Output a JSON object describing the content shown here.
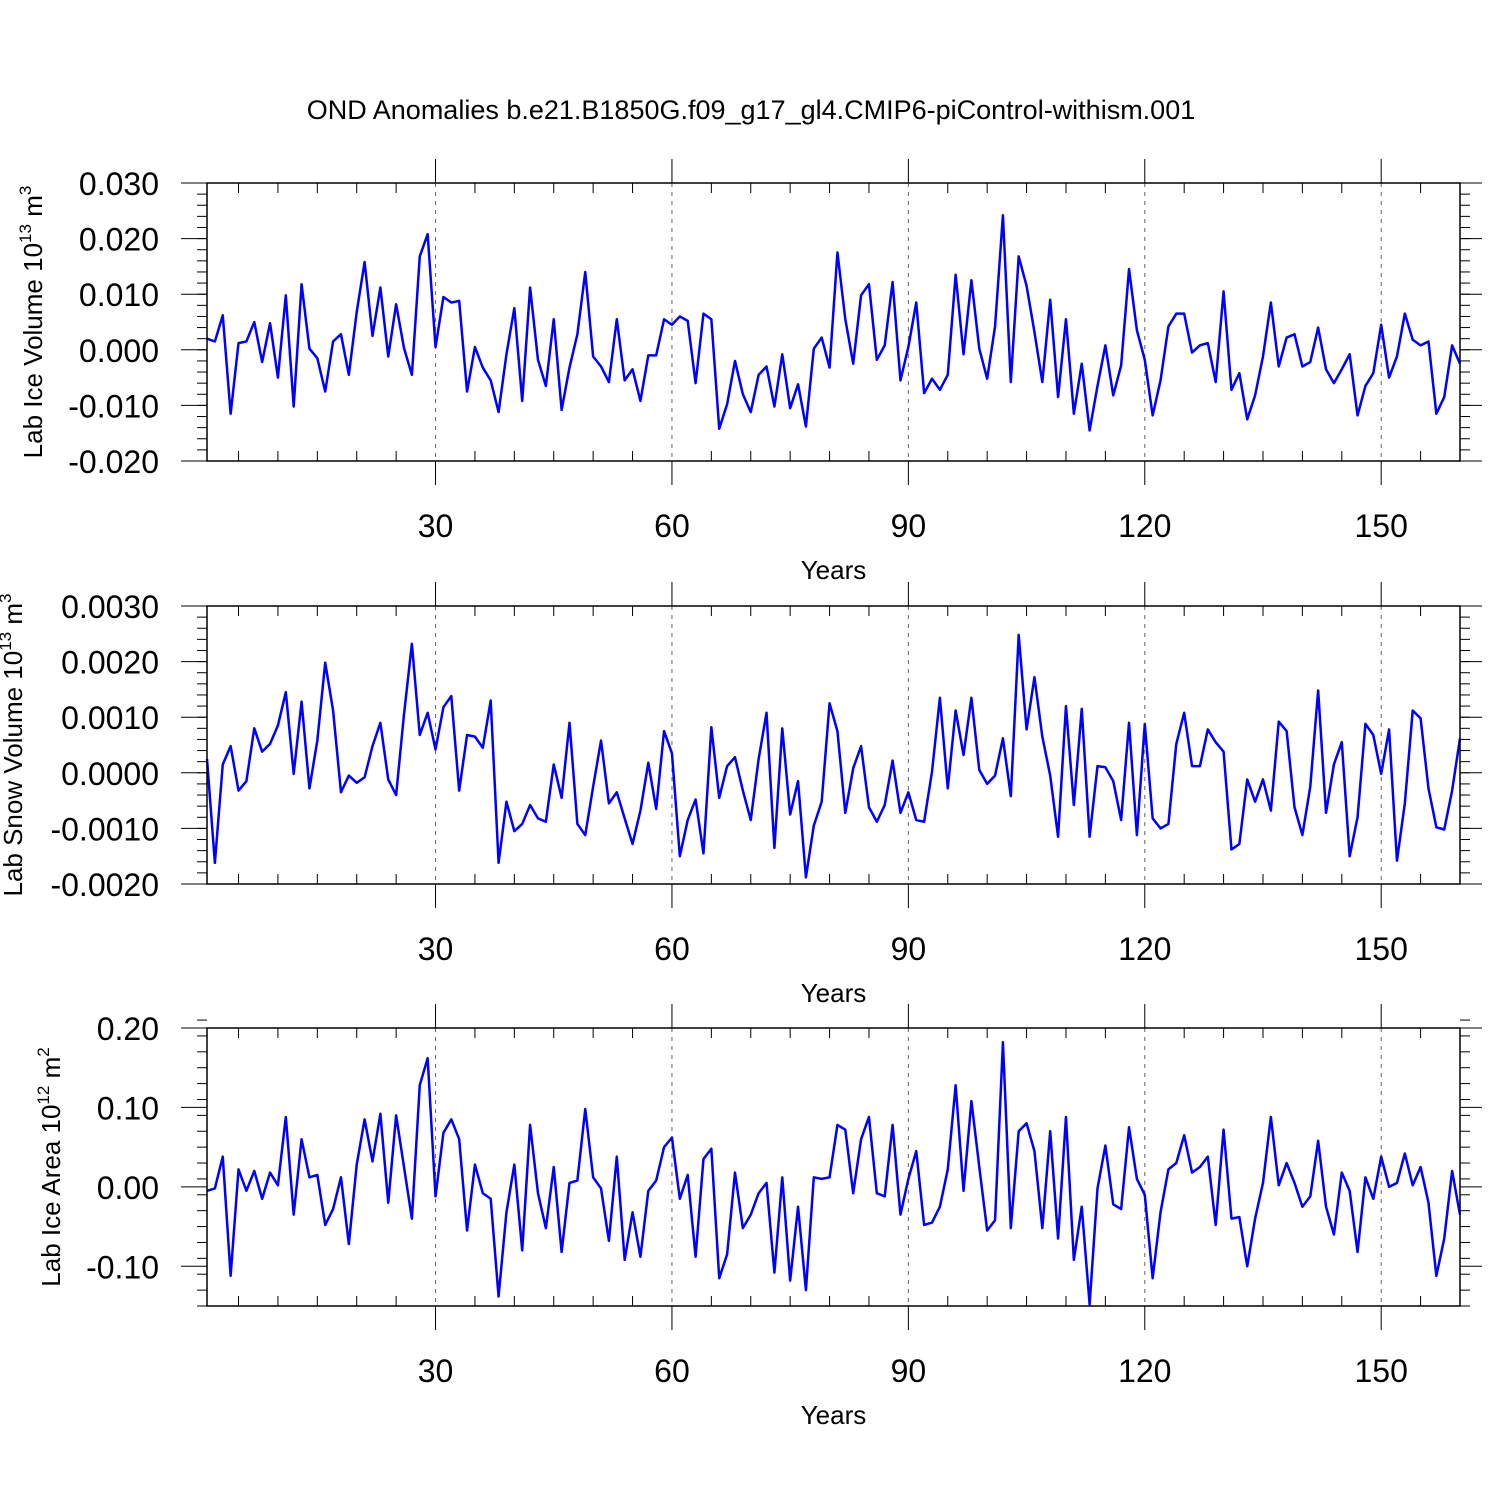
{
  "title": "OND Anomalies b.e21.B1850G.f09_g17_gl4.CMIP6-piControl-withism.001",
  "colors": {
    "line": "#0000ff",
    "frame": "#000000",
    "grid": "#666666",
    "background": "#ffffff"
  },
  "chart_data": [
    {
      "type": "line",
      "title": "",
      "xlabel": "Years",
      "ylabel": "Lab Ice Volume",
      "ylabel_unit_base": "10",
      "ylabel_unit_exp": "13",
      "ylabel_unit_symbol": "m",
      "ylabel_unit_power": "3",
      "xlim": [
        1,
        160
      ],
      "ylim": [
        -0.02,
        0.03
      ],
      "xticks": [
        30,
        60,
        90,
        120,
        150
      ],
      "xtick_labels": [
        "30",
        "60",
        "90",
        "120",
        "150"
      ],
      "yticks": [
        -0.02,
        -0.01,
        0.0,
        0.01,
        0.02,
        0.03
      ],
      "ytick_labels": [
        "-0.020",
        "-0.010",
        "0.000",
        "0.010",
        "0.020",
        "0.030"
      ],
      "grid": "vertical dashed at x ticks",
      "series": [
        {
          "name": "Lab Ice Volume",
          "values": [
            0.002,
            0.0015,
            0.0062,
            -0.0115,
            0.0012,
            0.0015,
            0.005,
            -0.0022,
            0.0048,
            -0.005,
            0.0098,
            -0.0102,
            0.0118,
            0.0002,
            -0.0015,
            -0.0075,
            0.0015,
            0.0028,
            -0.0045,
            0.0068,
            0.0158,
            0.0025,
            0.0112,
            -0.0012,
            0.0082,
            0.0003,
            -0.0045,
            0.0168,
            0.0208,
            0.0005,
            0.0095,
            0.0085,
            0.0088,
            -0.0075,
            0.0005,
            -0.0032,
            -0.0055,
            -0.0112,
            -0.0008,
            0.0075,
            -0.0092,
            0.0112,
            -0.0018,
            -0.0065,
            0.0055,
            -0.0108,
            -0.0032,
            0.0028,
            0.014,
            -0.0012,
            -0.003,
            -0.0058,
            0.0055,
            -0.0055,
            -0.0035,
            -0.0092,
            -0.001,
            -0.001,
            0.0055,
            0.0045,
            0.006,
            0.0052,
            -0.006,
            0.0065,
            0.0055,
            -0.0142,
            -0.0098,
            -0.002,
            -0.008,
            -0.0112,
            -0.0045,
            -0.003,
            -0.0102,
            -0.0008,
            -0.0105,
            -0.0062,
            -0.0138,
            0.0002,
            0.0022,
            -0.0032,
            0.0175,
            0.0055,
            -0.0025,
            0.0098,
            0.0118,
            -0.0018,
            0.0008,
            0.0122,
            -0.0055,
            0.0005,
            0.0085,
            -0.0078,
            -0.0052,
            -0.0072,
            -0.0045,
            0.0135,
            -0.0008,
            0.0125,
            0.0002,
            -0.0052,
            0.0042,
            0.0242,
            -0.0058,
            0.0168,
            0.0115,
            0.0032,
            -0.0058,
            0.009,
            -0.0085,
            0.0055,
            -0.0115,
            -0.0025,
            -0.0145,
            -0.0065,
            0.0008,
            -0.0082,
            -0.0028,
            0.0145,
            0.0035,
            -0.0018,
            -0.0118,
            -0.0055,
            0.0042,
            0.0065,
            0.0065,
            -0.0005,
            0.0008,
            0.0012,
            -0.0058,
            0.0105,
            -0.0072,
            -0.0042,
            -0.0125,
            -0.0082,
            -0.0012,
            0.0085,
            -0.003,
            0.0022,
            0.0028,
            -0.003,
            -0.0022,
            0.004,
            -0.0035,
            -0.006,
            -0.0035,
            -0.0008,
            -0.0118,
            -0.0065,
            -0.0042,
            0.0045,
            -0.005,
            -0.0012,
            0.0065,
            0.0018,
            0.0008,
            0.0015,
            -0.0115,
            -0.0085,
            0.0008,
            -0.0025
          ]
        }
      ]
    },
    {
      "type": "line",
      "title": "",
      "xlabel": "Years",
      "ylabel": "Lab Snow Volume",
      "ylabel_unit_base": "10",
      "ylabel_unit_exp": "13",
      "ylabel_unit_symbol": "m",
      "ylabel_unit_power": "3",
      "xlim": [
        1,
        160
      ],
      "ylim": [
        -0.002,
        0.003
      ],
      "xticks": [
        30,
        60,
        90,
        120,
        150
      ],
      "xtick_labels": [
        "30",
        "60",
        "90",
        "120",
        "150"
      ],
      "yticks": [
        -0.002,
        -0.001,
        0.0,
        0.001,
        0.002,
        0.003
      ],
      "ytick_labels": [
        "-0.0020",
        "-0.0010",
        "0.0000",
        "0.0010",
        "0.0020",
        "0.0030"
      ],
      "grid": "vertical dashed at x ticks",
      "series": [
        {
          "name": "Lab Snow Volume",
          "values": [
            0.00025,
            -0.00162,
            0.00015,
            0.00048,
            -0.00032,
            -0.00015,
            0.0008,
            0.00038,
            0.00052,
            0.00085,
            0.00145,
            -2e-05,
            0.00128,
            -0.00028,
            0.00058,
            0.00198,
            0.00112,
            -0.00035,
            -5e-05,
            -0.00018,
            -8e-05,
            0.00048,
            0.0009,
            -0.00012,
            -0.0004,
            0.00105,
            0.00232,
            0.00068,
            0.00108,
            0.00042,
            0.00118,
            0.00138,
            -0.00032,
            0.00068,
            0.00065,
            0.00045,
            0.0013,
            -0.00162,
            -0.00052,
            -0.00105,
            -0.00092,
            -0.00058,
            -0.00082,
            -0.00088,
            0.00015,
            -0.00045,
            0.0009,
            -0.00092,
            -0.00112,
            -0.00025,
            0.00058,
            -0.00055,
            -0.00035,
            -0.00082,
            -0.00128,
            -0.00068,
            0.00018,
            -0.00065,
            0.00075,
            0.00035,
            -0.0015,
            -0.00085,
            -0.00048,
            -0.00145,
            0.00082,
            -0.00045,
            0.00012,
            0.00028,
            -0.00032,
            -0.00085,
            0.00025,
            0.00108,
            -0.00135,
            0.0008,
            -0.00075,
            -0.00015,
            -0.00188,
            -0.00095,
            -0.00052,
            0.00125,
            0.00075,
            -0.00072,
            8e-05,
            0.00048,
            -0.00062,
            -0.00088,
            -0.00058,
            0.00022,
            -0.00072,
            -0.00035,
            -0.00085,
            -0.00088,
            2e-05,
            0.00135,
            -0.00028,
            0.00112,
            0.00032,
            0.00135,
            5e-05,
            -0.0002,
            -5e-05,
            0.00062,
            -0.00042,
            0.00248,
            0.00078,
            0.00172,
            0.00065,
            -5e-05,
            -0.00115,
            0.0012,
            -0.00058,
            0.00115,
            -0.00115,
            0.00012,
            0.0001,
            -0.00015,
            -0.00085,
            0.0009,
            -0.00112,
            0.00088,
            -0.00082,
            -0.001,
            -0.00092,
            0.00052,
            0.00108,
            0.00012,
            0.00012,
            0.00078,
            0.00055,
            0.00038,
            -0.00138,
            -0.00128,
            -0.00012,
            -0.00052,
            -0.00012,
            -0.00068,
            0.00092,
            0.00075,
            -0.00062,
            -0.00112,
            -0.00025,
            0.00148,
            -0.00072,
            0.00015,
            0.00055,
            -0.0015,
            -0.0008,
            0.00088,
            0.00068,
            -2e-05,
            0.00078,
            -0.00158,
            -0.00055,
            0.00112,
            0.00098,
            -0.00028,
            -0.00098,
            -0.00102,
            -0.00032,
            0.00062
          ]
        }
      ]
    },
    {
      "type": "line",
      "title": "",
      "xlabel": "Years",
      "ylabel": "Lab Ice Area",
      "ylabel_unit_base": "10",
      "ylabel_unit_exp": "12",
      "ylabel_unit_symbol": "m",
      "ylabel_unit_power": "2",
      "xlim": [
        1,
        160
      ],
      "ylim": [
        -0.15,
        0.2
      ],
      "xticks": [
        30,
        60,
        90,
        120,
        150
      ],
      "xtick_labels": [
        "30",
        "60",
        "90",
        "120",
        "150"
      ],
      "yticks": [
        -0.1,
        0.0,
        0.1,
        0.2
      ],
      "ytick_labels": [
        "-0.10",
        "0.00",
        "0.10",
        "0.20"
      ],
      "grid": "vertical dashed at x ticks",
      "series": [
        {
          "name": "Lab Ice Area",
          "values": [
            -0.005,
            -0.002,
            0.038,
            -0.112,
            0.022,
            -0.005,
            0.02,
            -0.015,
            0.018,
            0.002,
            0.088,
            -0.035,
            0.06,
            0.012,
            0.015,
            -0.048,
            -0.028,
            0.012,
            -0.072,
            0.028,
            0.085,
            0.032,
            0.092,
            -0.02,
            0.09,
            0.025,
            -0.04,
            0.128,
            0.162,
            -0.012,
            0.068,
            0.085,
            0.06,
            -0.055,
            0.028,
            -0.008,
            -0.015,
            -0.138,
            -0.032,
            0.028,
            -0.08,
            0.078,
            -0.008,
            -0.052,
            0.025,
            -0.082,
            0.005,
            0.008,
            0.098,
            0.012,
            -0.002,
            -0.068,
            0.038,
            -0.092,
            -0.032,
            -0.088,
            -0.005,
            0.008,
            0.05,
            0.062,
            -0.015,
            0.015,
            -0.088,
            0.035,
            0.048,
            -0.115,
            -0.085,
            0.018,
            -0.052,
            -0.035,
            -0.008,
            0.005,
            -0.108,
            0.012,
            -0.118,
            -0.025,
            -0.13,
            0.012,
            0.01,
            0.012,
            0.078,
            0.072,
            -0.008,
            0.06,
            0.088,
            -0.008,
            -0.012,
            0.078,
            -0.035,
            0.01,
            0.045,
            -0.048,
            -0.045,
            -0.025,
            0.022,
            0.128,
            -0.005,
            0.108,
            0.025,
            -0.055,
            -0.042,
            0.182,
            -0.052,
            0.07,
            0.08,
            0.045,
            -0.052,
            0.07,
            -0.065,
            0.088,
            -0.092,
            -0.025,
            -0.148,
            -0.002,
            0.052,
            -0.022,
            -0.028,
            0.075,
            0.01,
            -0.01,
            -0.115,
            -0.032,
            0.022,
            0.03,
            0.065,
            0.018,
            0.025,
            0.038,
            -0.048,
            0.072,
            -0.04,
            -0.038,
            -0.1,
            -0.04,
            0.005,
            0.088,
            0.002,
            0.03,
            0.005,
            -0.025,
            -0.012,
            0.058,
            -0.025,
            -0.06,
            0.018,
            -0.005,
            -0.082,
            0.012,
            -0.015,
            0.038,
            0.0,
            0.005,
            0.042,
            0.002,
            0.025,
            -0.02,
            -0.112,
            -0.065,
            0.02,
            -0.035
          ]
        }
      ]
    }
  ]
}
